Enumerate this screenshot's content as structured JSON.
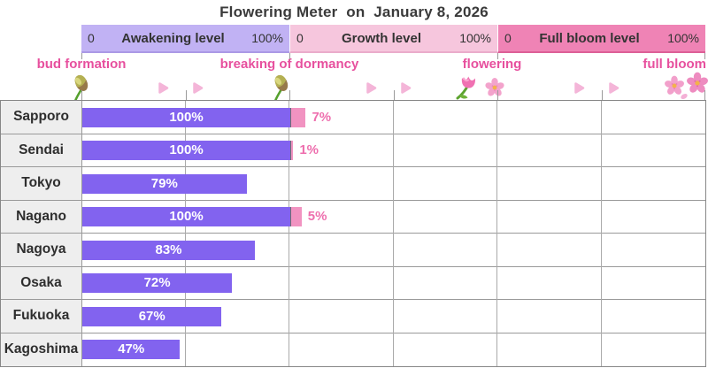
{
  "title": "Flowering Meter  on  January 8, 2026",
  "meter": {
    "bands": [
      {
        "min": "0",
        "label": "Awakening level",
        "max": "100%"
      },
      {
        "min": "0",
        "label": "Growth level",
        "max": "100%"
      },
      {
        "min": "0",
        "label": "Full bloom level",
        "max": "100%"
      }
    ],
    "stages": [
      {
        "label": "bud formation",
        "icon": "bud-icon"
      },
      {
        "label": "breaking of dormancy",
        "icon": "bud-icon"
      },
      {
        "label": "flowering",
        "icon": "tulip-and-blossom-icon"
      },
      {
        "label": "full bloom",
        "icon": "double-blossom-icon"
      }
    ]
  },
  "chart_data": {
    "type": "bar",
    "orientation": "horizontal",
    "title": "Flowering Meter  on  January 8, 2026",
    "categories": [
      "Sapporo",
      "Sendai",
      "Tokyo",
      "Nagano",
      "Nagoya",
      "Osaka",
      "Fukuoka",
      "Kagoshima"
    ],
    "series": [
      {
        "name": "Awakening level",
        "unit": "%",
        "values": [
          100,
          100,
          79,
          100,
          83,
          72,
          67,
          47
        ]
      },
      {
        "name": "Growth level",
        "unit": "%",
        "values": [
          7,
          1,
          0,
          5,
          0,
          0,
          0,
          0
        ]
      }
    ],
    "axis": {
      "per_band_range": [
        0,
        100
      ],
      "bands": [
        "Awakening level",
        "Growth level",
        "Full bloom level"
      ]
    },
    "grid": true,
    "value_labels": "inside bars for awakening, pink text after growth segment"
  },
  "colors": {
    "awakening_band": "#c1b2f4",
    "awakening_band_edge": "#ab99e6",
    "growth_band": "#f6c6dd",
    "growth_band_edge": "#eaaccb",
    "full_bloom_band": "#ef83b5",
    "full_bloom_band_edge": "#dd5f97",
    "bar_awakening": "#8263ef",
    "bar_growth": "#f193c1",
    "growth_value_text": "#ee6fae",
    "stage_label_text": "#e7509e",
    "bar_value_text": "#ffffff"
  },
  "icons": {
    "bud-icon": "olive-green flower bud with stem",
    "arrow-icon": "small pink right triangle",
    "tulip-and-blossom-icon": "pink tulip with cherry blossom",
    "double-blossom-icon": "two cherry blossoms with falling petal"
  }
}
